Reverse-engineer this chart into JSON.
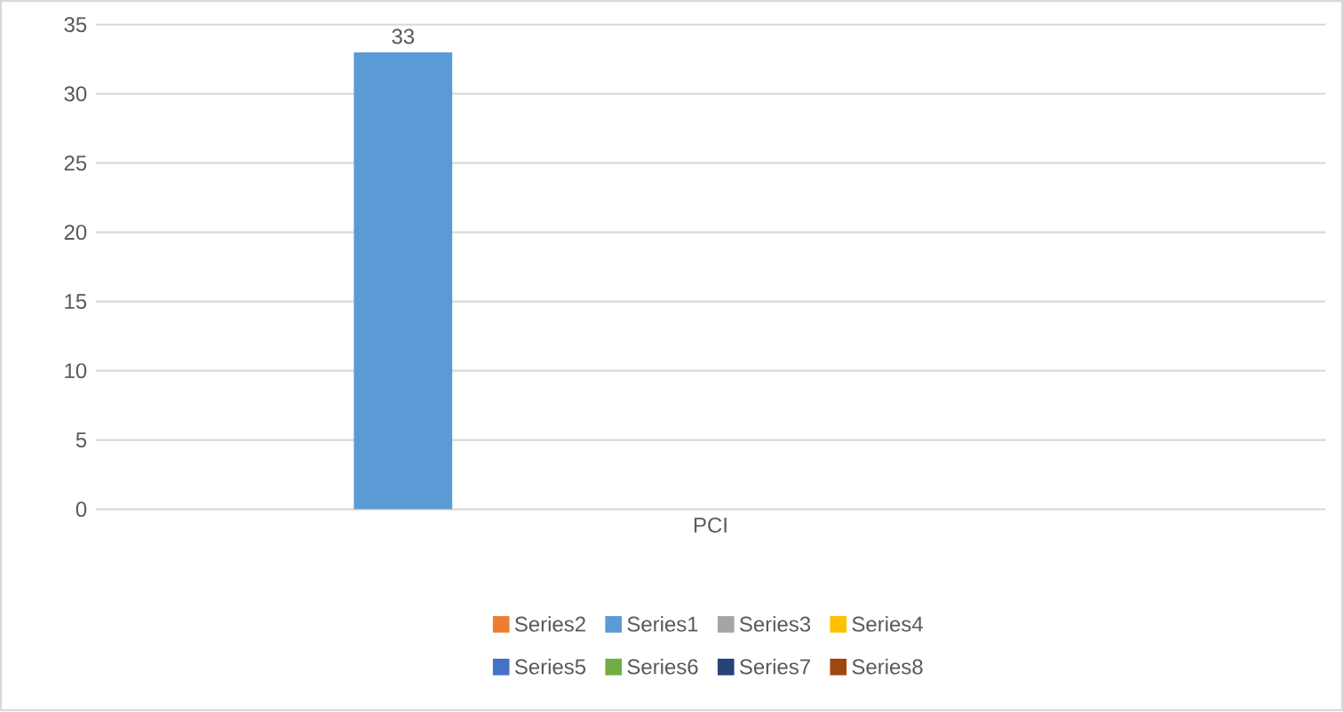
{
  "chart_data": {
    "type": "bar",
    "categories": [
      "PCI"
    ],
    "series": [
      {
        "name": "Series2",
        "color": "#ed7d31",
        "values": [
          null
        ]
      },
      {
        "name": "Series1",
        "color": "#5b9bd5",
        "values": [
          33
        ]
      },
      {
        "name": "Series3",
        "color": "#a5a5a5",
        "values": [
          null
        ]
      },
      {
        "name": "Series4",
        "color": "#ffc000",
        "values": [
          null
        ]
      },
      {
        "name": "Series5",
        "color": "#4472c4",
        "values": [
          null
        ]
      },
      {
        "name": "Series6",
        "color": "#70ad47",
        "values": [
          null
        ]
      },
      {
        "name": "Series7",
        "color": "#264478",
        "values": [
          null
        ]
      },
      {
        "name": "Series8",
        "color": "#9e480e",
        "values": [
          null
        ]
      }
    ],
    "ylim": [
      0,
      35
    ],
    "yticks": [
      0,
      5,
      10,
      15,
      20,
      25,
      30,
      35
    ],
    "grid": "y",
    "legend": "bottom",
    "data_labels": true
  }
}
